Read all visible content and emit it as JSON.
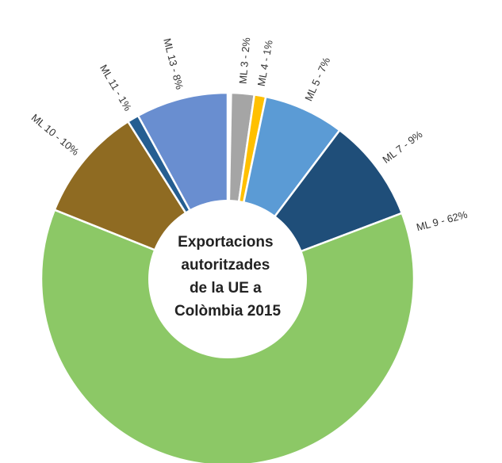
{
  "chart_data": {
    "type": "donut",
    "title": [
      "Exportacions",
      "autoritzades",
      "de la UE a",
      "Colòmbia 2015"
    ],
    "values": [
      2,
      1,
      7,
      9,
      62,
      10,
      1,
      8
    ],
    "value_labels": [
      "ML 3 - 2%",
      "ML 4 - 1%",
      "ML 5 - 7%",
      "ML 7 - 9%",
      "ML 9 - 62%",
      "ML 10 - 10%",
      "ML 11 - 1%",
      "ML 13 - 8%"
    ],
    "colors": [
      "#a5a5a5",
      "#ffc000",
      "#5b9bd5",
      "#1f4e79",
      "#8cc866",
      "#8f6b22",
      "#255e91",
      "#698ed0"
    ]
  }
}
